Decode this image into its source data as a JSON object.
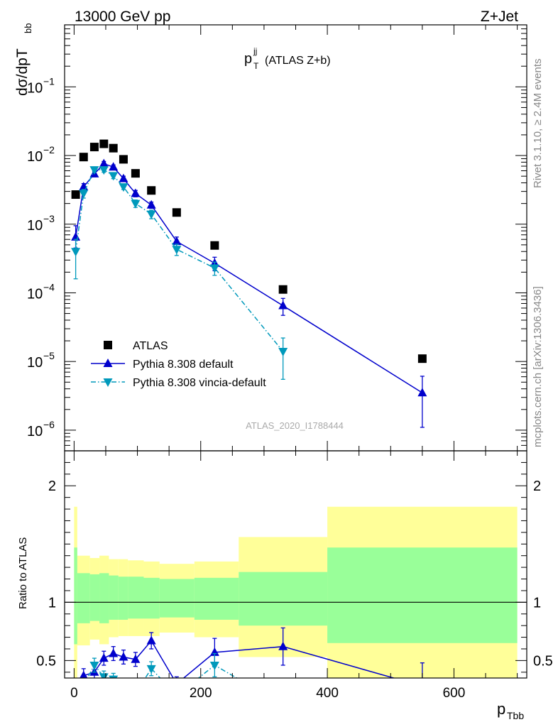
{
  "header": {
    "left": "13000 GeV pp",
    "right": "Z+Jet"
  },
  "side_labels": {
    "rivet": "Rivet 3.1.10, ≥ 2.4M events",
    "mcplots": "mcplots.cern.ch [arXiv:1306.3436]"
  },
  "chart_data": [
    {
      "type": "scatter",
      "panel": "main",
      "title_main": "p",
      "title_sup": "jj",
      "title_sub": "T",
      "title_rest": "(ATLAS Z+b)",
      "ylabel_main": "dσ/dpT",
      "ylabel_sub": "bb",
      "watermark": "ATLAS_2020_I1788444",
      "yscale": "log",
      "ylim": [
        5e-07,
        0.8
      ],
      "xlim": [
        -15,
        715
      ],
      "ytick_labels": [
        {
          "exp": -6,
          "base": "10",
          "sup": "−6"
        },
        {
          "exp": -5,
          "base": "10",
          "sup": "−5"
        },
        {
          "exp": -4,
          "base": "10",
          "sup": "−4"
        },
        {
          "exp": -3,
          "base": "10",
          "sup": "−3"
        },
        {
          "exp": -2,
          "base": "10",
          "sup": "−2"
        },
        {
          "exp": -1,
          "base": "10",
          "sup": "−1"
        }
      ],
      "legend_position": "bottom-left",
      "series": [
        {
          "name": "ATLAS",
          "style": "square",
          "color": "#000000",
          "x": [
            2.5,
            15,
            32,
            47,
            62,
            78,
            97,
            122,
            162,
            222,
            330,
            550
          ],
          "y": [
            0.0027,
            0.0095,
            0.0133,
            0.0148,
            0.0128,
            0.0088,
            0.0055,
            0.0031,
            0.00148,
            0.00049,
            0.000112,
            1.1e-05
          ]
        },
        {
          "name": "Pythia 8.308 default",
          "style": "triangle-up",
          "line": "solid",
          "color": "#0000cc",
          "x": [
            2.5,
            15,
            32,
            47,
            62,
            78,
            97,
            122,
            162,
            222,
            330,
            550
          ],
          "y": [
            0.00065,
            0.0035,
            0.0054,
            0.0076,
            0.0068,
            0.0046,
            0.0028,
            0.0019,
            0.00056,
            0.00027,
            6.5e-05,
            3.5e-06
          ],
          "err_low": [
            0.0002,
            0.0004,
            0.0005,
            0.0006,
            0.0005,
            0.0004,
            0.0003,
            0.0002,
            9e-05,
            6e-05,
            1.8e-05,
            2.4e-06
          ],
          "err_high": [
            0.0003,
            0.0004,
            0.0005,
            0.0006,
            0.0005,
            0.0004,
            0.0003,
            0.0002,
            9e-05,
            6e-05,
            1.8e-05,
            2.6e-06
          ]
        },
        {
          "name": "Pythia 8.308 vincia-default",
          "style": "triangle-down",
          "line": "dashdot",
          "color": "#0099bb",
          "x": [
            2.5,
            15,
            32,
            47,
            62,
            78,
            97,
            122,
            162,
            222,
            330
          ],
          "y": [
            0.0004,
            0.0028,
            0.0062,
            0.0062,
            0.0051,
            0.0035,
            0.002,
            0.0014,
            0.00043,
            0.00023,
            1.4e-05
          ],
          "err_low": [
            0.00024,
            0.0004,
            0.0005,
            0.0005,
            0.0005,
            0.0003,
            0.00025,
            0.0002,
            8e-05,
            5e-05,
            8.5e-06
          ],
          "err_high": [
            0.0002,
            0.0004,
            0.0005,
            0.0005,
            0.0005,
            0.0003,
            0.00025,
            0.0002,
            8e-05,
            5e-05,
            8e-06
          ]
        }
      ]
    },
    {
      "type": "line",
      "panel": "ratio",
      "ylabel": "Ratio to ATLAS",
      "xlabel_main": "p",
      "xlabel_sub": "Tbb",
      "xlim": [
        -15,
        715
      ],
      "ylim": [
        0.35,
        2.3
      ],
      "xticks": [
        0,
        200,
        400,
        600
      ],
      "yticks": [
        0.5,
        1,
        2
      ],
      "bands": {
        "bin_edges": [
          0,
          5,
          25,
          40,
          55,
          70,
          85,
          110,
          135,
          190,
          260,
          400,
          700
        ],
        "yellow": [
          [
            0.2,
            1.82
          ],
          [
            0.63,
            1.4
          ],
          [
            0.68,
            1.38
          ],
          [
            0.64,
            1.4
          ],
          [
            0.7,
            1.37
          ],
          [
            0.71,
            1.37
          ],
          [
            0.71,
            1.36
          ],
          [
            0.71,
            1.35
          ],
          [
            0.74,
            1.33
          ],
          [
            0.7,
            1.35
          ],
          [
            0.53,
            1.56
          ],
          [
            0.2,
            1.82
          ]
        ],
        "green": [
          [
            0.64,
            1.47
          ],
          [
            0.82,
            1.25
          ],
          [
            0.84,
            1.24
          ],
          [
            0.82,
            1.25
          ],
          [
            0.85,
            1.23
          ],
          [
            0.85,
            1.22
          ],
          [
            0.86,
            1.22
          ],
          [
            0.86,
            1.21
          ],
          [
            0.87,
            1.2
          ],
          [
            0.85,
            1.21
          ],
          [
            0.8,
            1.26
          ],
          [
            0.65,
            1.47
          ]
        ]
      },
      "series": [
        {
          "name": "Pythia 8.308 default",
          "color": "#0000cc",
          "style": "triangle-up",
          "line": "solid",
          "x": [
            15,
            32,
            47,
            62,
            78,
            97,
            122,
            162,
            222,
            330,
            550
          ],
          "y": [
            0.37,
            0.4,
            0.52,
            0.56,
            0.53,
            0.51,
            0.67,
            0.3,
            0.57,
            0.62,
            0.28
          ],
          "err": [
            0.06,
            0.08,
            0.06,
            0.06,
            0.06,
            0.06,
            0.07,
            0.06,
            0.12,
            0.16,
            0.2
          ]
        },
        {
          "name": "Pythia 8.308 vincia-default",
          "color": "#0099bb",
          "style": "triangle-down",
          "line": "dashdot",
          "x": [
            15,
            32,
            47,
            62,
            78,
            97,
            122,
            162,
            222,
            330
          ],
          "y": [
            0.29,
            0.46,
            0.36,
            0.34,
            0.27,
            0.22,
            0.43,
            0.2,
            0.46,
            0.12
          ],
          "err": [
            0.05,
            0.06,
            0.05,
            0.05,
            0.05,
            0.05,
            0.06,
            0.05,
            0.1,
            0.08
          ]
        }
      ]
    }
  ]
}
